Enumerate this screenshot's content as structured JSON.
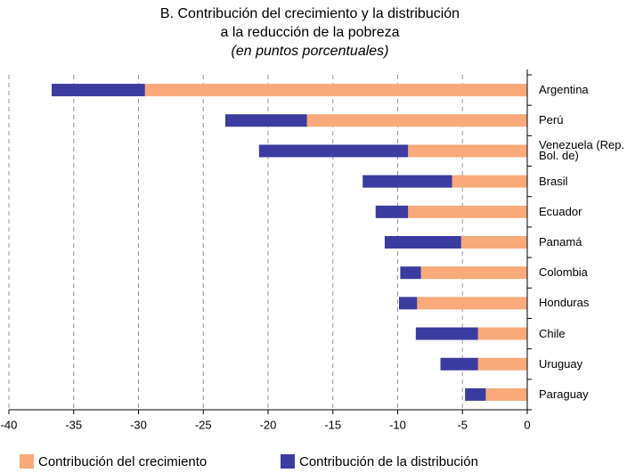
{
  "chart_data": {
    "type": "stacked-barh",
    "title": [
      "B. Contribución del crecimiento y la distribución",
      "a la reducción de la pobreza"
    ],
    "subtitle": "(en puntos porcentuales)",
    "categories": [
      "Argentina",
      "Perú",
      "Venezuela (Rep. Bol. de)",
      "Brasil",
      "Ecuador",
      "Panamá",
      "Colombia",
      "Honduras",
      "Chile",
      "Uruguay",
      "Paraguay"
    ],
    "series": [
      {
        "name": "Contribución del crecimiento",
        "color": "#f8aa7a",
        "values": [
          -29.5,
          -17.0,
          -9.2,
          -5.8,
          -9.2,
          -5.1,
          -8.2,
          -8.5,
          -3.8,
          -3.8,
          -3.2
        ]
      },
      {
        "name": "Contribución de la distribución",
        "color": "#3b3ba0",
        "values": [
          -7.2,
          -6.3,
          -11.5,
          -6.9,
          -2.5,
          -5.9,
          -1.6,
          -1.4,
          -4.8,
          -2.9,
          -1.6
        ]
      }
    ],
    "xlim": [
      -40,
      0
    ],
    "xticks": [
      -40,
      -35,
      -30,
      -25,
      -20,
      -15,
      -10,
      -5,
      0
    ],
    "grid": true
  }
}
